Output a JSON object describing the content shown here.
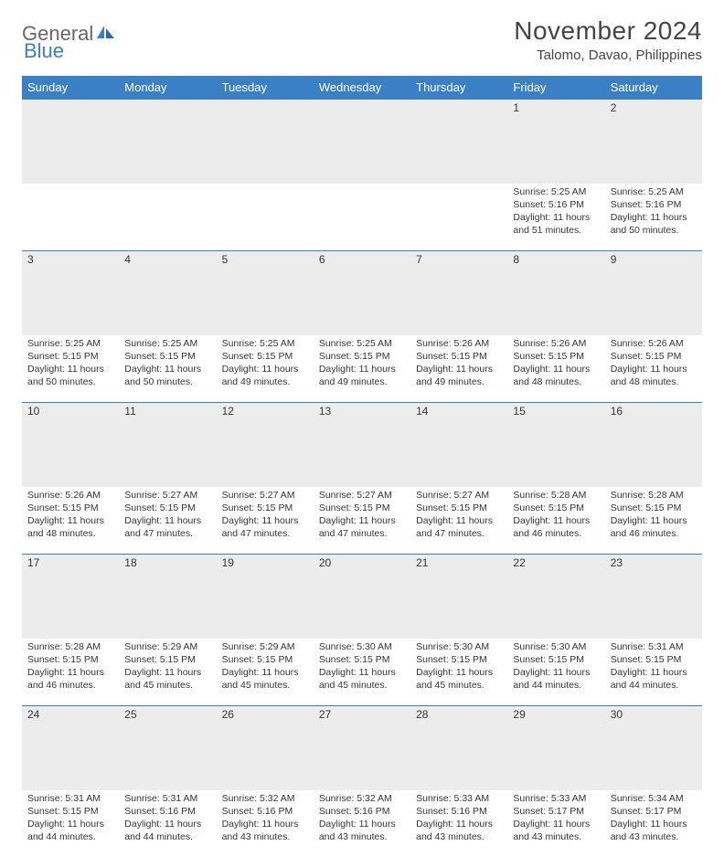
{
  "brand": {
    "part1": "General",
    "part2": "Blue"
  },
  "title": "November 2024",
  "location": "Talomo, Davao, Philippines",
  "colors": {
    "header_bg": "#3b7fc4",
    "header_text": "#ffffff",
    "daynum_bg": "#ececec",
    "border": "#3b7fc4",
    "text": "#333333",
    "brand_gray": "#666666",
    "brand_blue": "#3b7fc4",
    "page_bg": "#ffffff"
  },
  "typography": {
    "title_fontsize": 28,
    "location_fontsize": 15,
    "header_fontsize": 13,
    "daynum_fontsize": 12,
    "body_fontsize": 10.5
  },
  "weekdays": [
    "Sunday",
    "Monday",
    "Tuesday",
    "Wednesday",
    "Thursday",
    "Friday",
    "Saturday"
  ],
  "weeks": [
    [
      null,
      null,
      null,
      null,
      null,
      {
        "n": "1",
        "sunrise": "5:25 AM",
        "sunset": "5:16 PM",
        "daylight": "11 hours and 51 minutes."
      },
      {
        "n": "2",
        "sunrise": "5:25 AM",
        "sunset": "5:16 PM",
        "daylight": "11 hours and 50 minutes."
      }
    ],
    [
      {
        "n": "3",
        "sunrise": "5:25 AM",
        "sunset": "5:15 PM",
        "daylight": "11 hours and 50 minutes."
      },
      {
        "n": "4",
        "sunrise": "5:25 AM",
        "sunset": "5:15 PM",
        "daylight": "11 hours and 50 minutes."
      },
      {
        "n": "5",
        "sunrise": "5:25 AM",
        "sunset": "5:15 PM",
        "daylight": "11 hours and 49 minutes."
      },
      {
        "n": "6",
        "sunrise": "5:25 AM",
        "sunset": "5:15 PM",
        "daylight": "11 hours and 49 minutes."
      },
      {
        "n": "7",
        "sunrise": "5:26 AM",
        "sunset": "5:15 PM",
        "daylight": "11 hours and 49 minutes."
      },
      {
        "n": "8",
        "sunrise": "5:26 AM",
        "sunset": "5:15 PM",
        "daylight": "11 hours and 48 minutes."
      },
      {
        "n": "9",
        "sunrise": "5:26 AM",
        "sunset": "5:15 PM",
        "daylight": "11 hours and 48 minutes."
      }
    ],
    [
      {
        "n": "10",
        "sunrise": "5:26 AM",
        "sunset": "5:15 PM",
        "daylight": "11 hours and 48 minutes."
      },
      {
        "n": "11",
        "sunrise": "5:27 AM",
        "sunset": "5:15 PM",
        "daylight": "11 hours and 47 minutes."
      },
      {
        "n": "12",
        "sunrise": "5:27 AM",
        "sunset": "5:15 PM",
        "daylight": "11 hours and 47 minutes."
      },
      {
        "n": "13",
        "sunrise": "5:27 AM",
        "sunset": "5:15 PM",
        "daylight": "11 hours and 47 minutes."
      },
      {
        "n": "14",
        "sunrise": "5:27 AM",
        "sunset": "5:15 PM",
        "daylight": "11 hours and 47 minutes."
      },
      {
        "n": "15",
        "sunrise": "5:28 AM",
        "sunset": "5:15 PM",
        "daylight": "11 hours and 46 minutes."
      },
      {
        "n": "16",
        "sunrise": "5:28 AM",
        "sunset": "5:15 PM",
        "daylight": "11 hours and 46 minutes."
      }
    ],
    [
      {
        "n": "17",
        "sunrise": "5:28 AM",
        "sunset": "5:15 PM",
        "daylight": "11 hours and 46 minutes."
      },
      {
        "n": "18",
        "sunrise": "5:29 AM",
        "sunset": "5:15 PM",
        "daylight": "11 hours and 45 minutes."
      },
      {
        "n": "19",
        "sunrise": "5:29 AM",
        "sunset": "5:15 PM",
        "daylight": "11 hours and 45 minutes."
      },
      {
        "n": "20",
        "sunrise": "5:30 AM",
        "sunset": "5:15 PM",
        "daylight": "11 hours and 45 minutes."
      },
      {
        "n": "21",
        "sunrise": "5:30 AM",
        "sunset": "5:15 PM",
        "daylight": "11 hours and 45 minutes."
      },
      {
        "n": "22",
        "sunrise": "5:30 AM",
        "sunset": "5:15 PM",
        "daylight": "11 hours and 44 minutes."
      },
      {
        "n": "23",
        "sunrise": "5:31 AM",
        "sunset": "5:15 PM",
        "daylight": "11 hours and 44 minutes."
      }
    ],
    [
      {
        "n": "24",
        "sunrise": "5:31 AM",
        "sunset": "5:15 PM",
        "daylight": "11 hours and 44 minutes."
      },
      {
        "n": "25",
        "sunrise": "5:31 AM",
        "sunset": "5:16 PM",
        "daylight": "11 hours and 44 minutes."
      },
      {
        "n": "26",
        "sunrise": "5:32 AM",
        "sunset": "5:16 PM",
        "daylight": "11 hours and 43 minutes."
      },
      {
        "n": "27",
        "sunrise": "5:32 AM",
        "sunset": "5:16 PM",
        "daylight": "11 hours and 43 minutes."
      },
      {
        "n": "28",
        "sunrise": "5:33 AM",
        "sunset": "5:16 PM",
        "daylight": "11 hours and 43 minutes."
      },
      {
        "n": "29",
        "sunrise": "5:33 AM",
        "sunset": "5:17 PM",
        "daylight": "11 hours and 43 minutes."
      },
      {
        "n": "30",
        "sunrise": "5:34 AM",
        "sunset": "5:17 PM",
        "daylight": "11 hours and 43 minutes."
      }
    ]
  ],
  "labels": {
    "sunrise": "Sunrise:",
    "sunset": "Sunset:",
    "daylight": "Daylight:"
  }
}
